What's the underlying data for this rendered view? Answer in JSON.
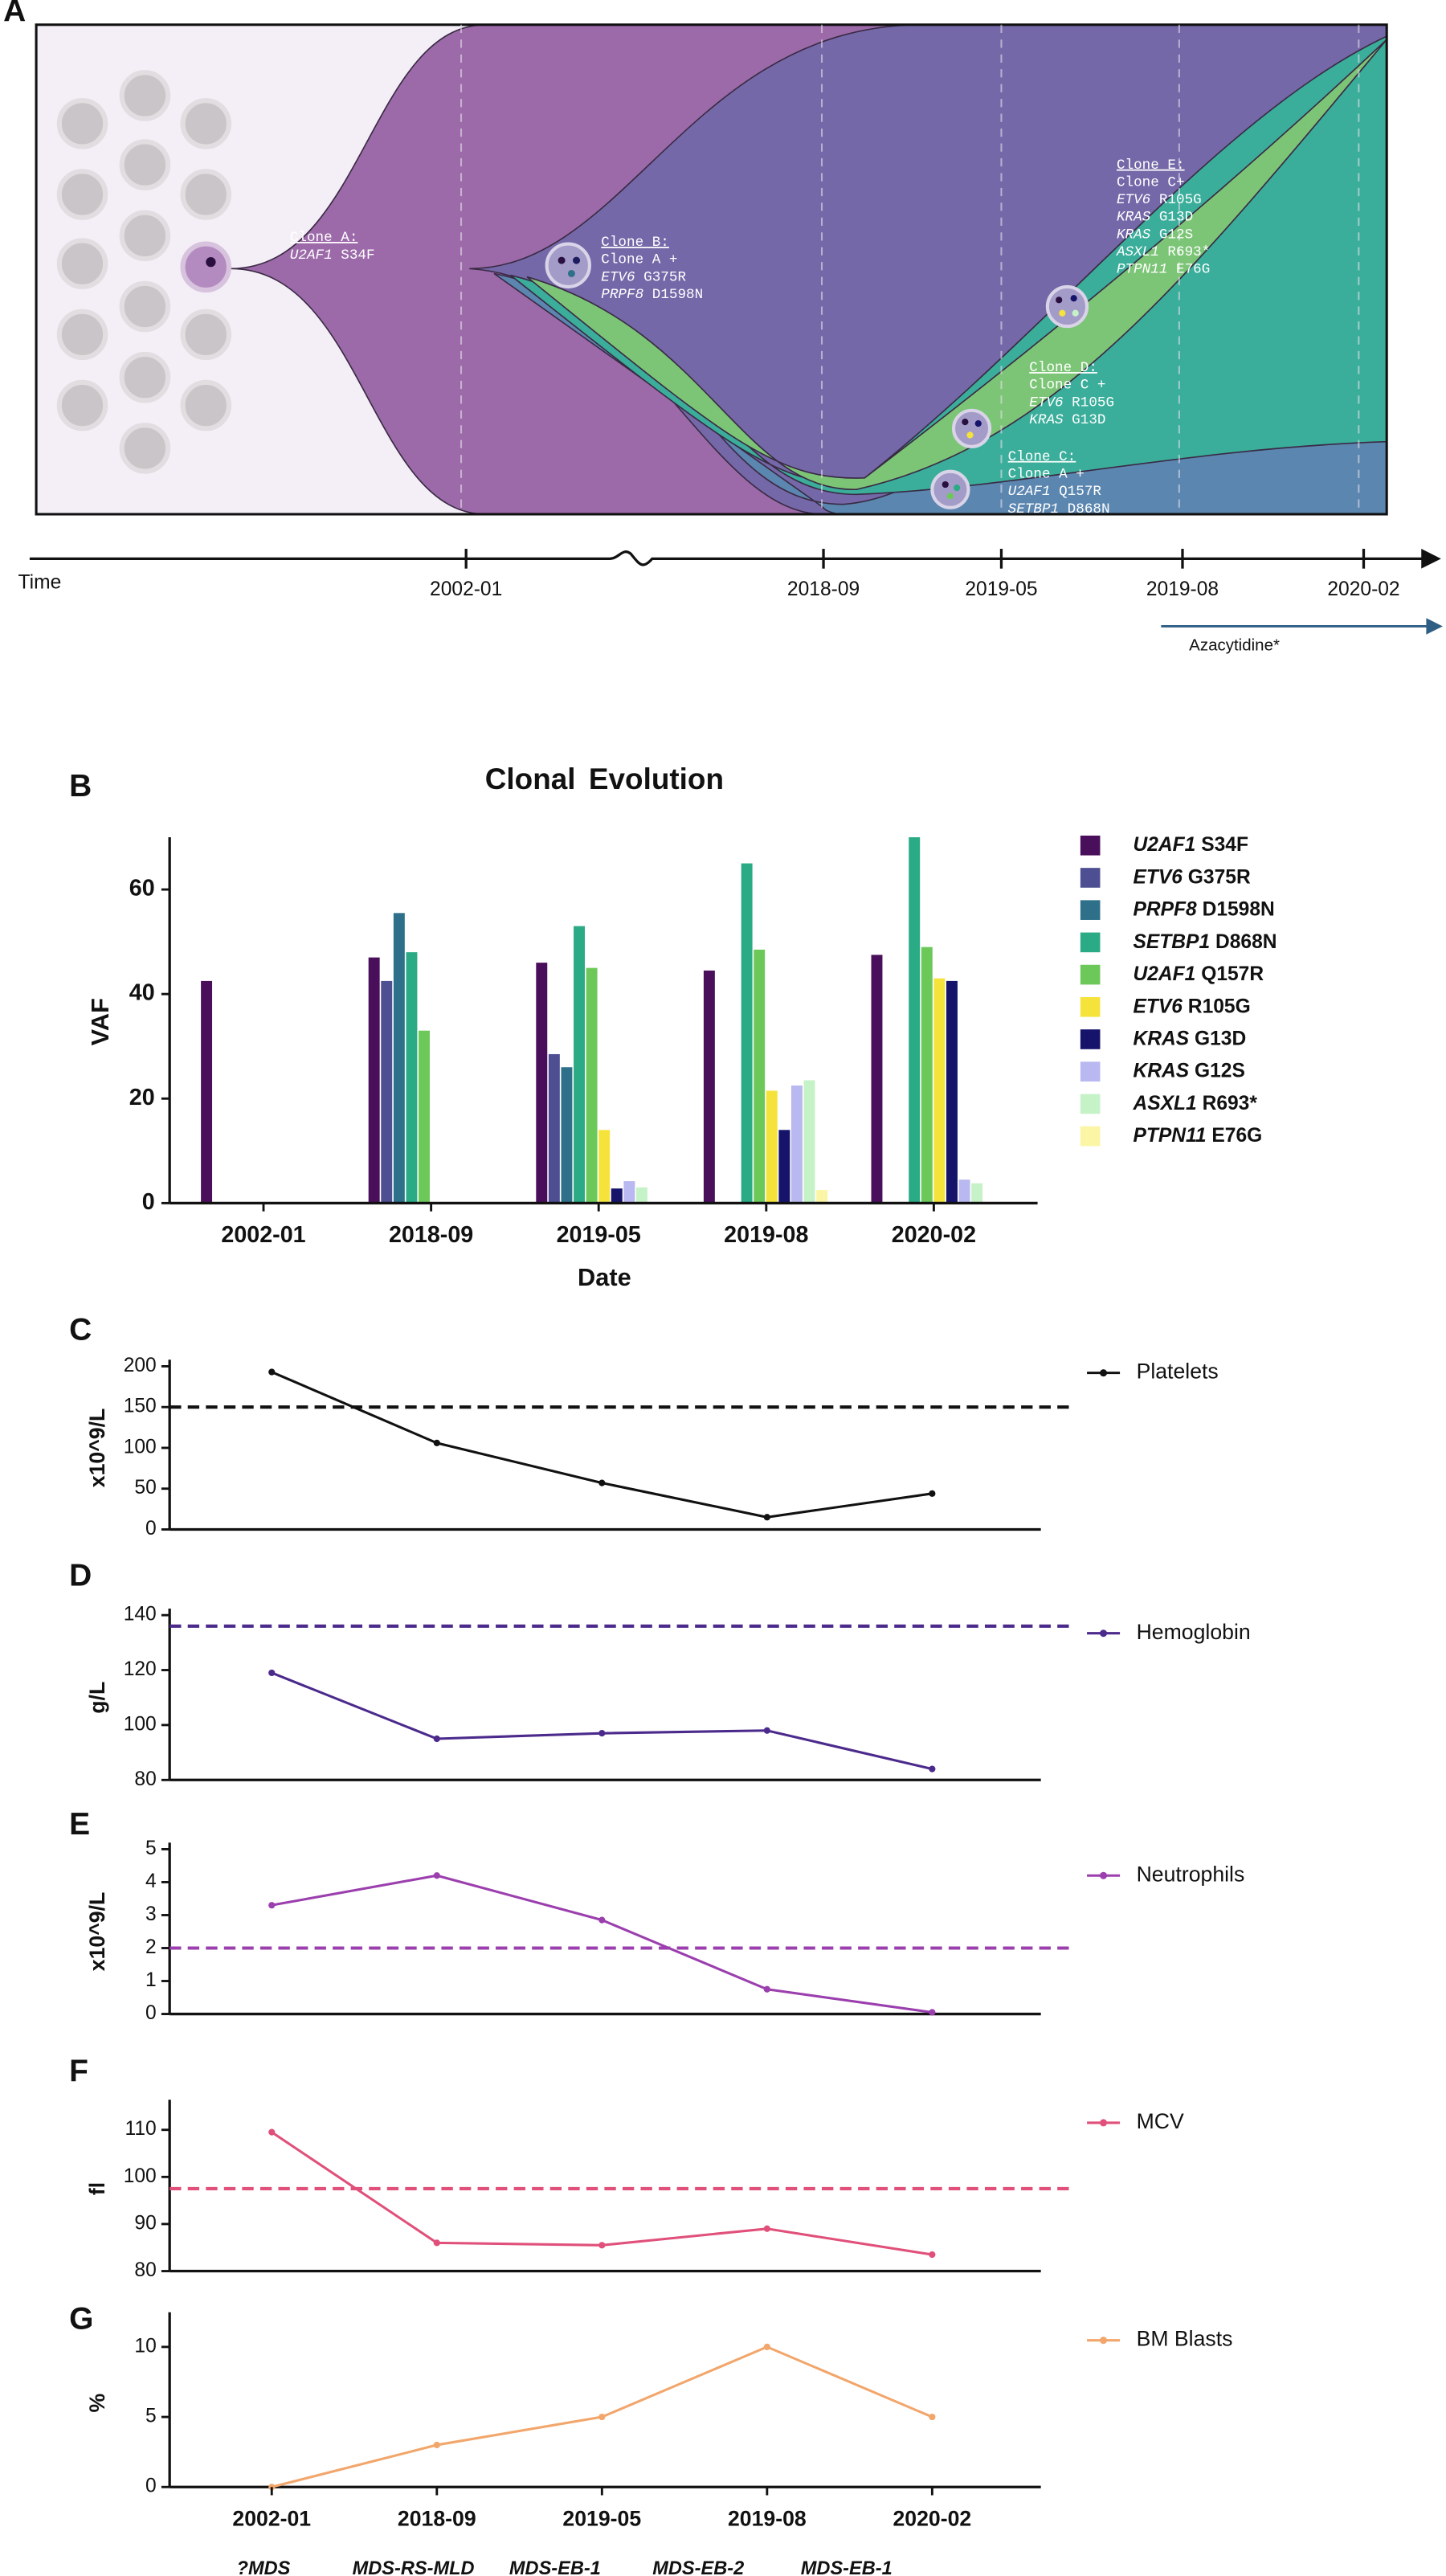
{
  "panel_a": {
    "label": "A",
    "time_label": "Time",
    "time_ticks": [
      "2002-01",
      "2018-09",
      "2019-05",
      "2019-08",
      "2020-02"
    ],
    "treatment": "Azacytidine*",
    "clones": [
      {
        "title": "Clone A:",
        "mutations": [
          "U2AF1 S34F"
        ]
      },
      {
        "title": "Clone B:",
        "parent": "Clone A +",
        "mutations": [
          "ETV6 G375R",
          "PRPF8 D1598N"
        ]
      },
      {
        "title": "Clone C:",
        "parent": "Clone A +",
        "mutations": [
          "U2AF1 Q157R",
          "SETBP1 D868N"
        ]
      },
      {
        "title": "Clone D:",
        "parent": "Clone C +",
        "mutations": [
          "ETV6 R105G",
          "KRAS G13D"
        ]
      },
      {
        "title": "Clone E:",
        "parent": "Clone C+",
        "mutations": [
          "ETV6 R105G",
          "KRAS G13D",
          "KRAS G12S",
          "ASXL1 R693*",
          "PTPN11 E76G"
        ]
      }
    ]
  },
  "chart_data": [
    {
      "type": "bar",
      "panel": "B",
      "title": "Clonal Evolution",
      "xlabel": "Date",
      "ylabel": "VAF",
      "categories": [
        "2002-01",
        "2018-09",
        "2019-05",
        "2019-08",
        "2020-02"
      ],
      "ylim": [
        0,
        70
      ],
      "yticks": [
        0,
        20,
        40,
        60
      ],
      "series": [
        {
          "name": "U2AF1 S34F",
          "color": "#4a0f5a",
          "values": [
            42.5,
            47,
            46,
            44.5,
            47.5
          ]
        },
        {
          "name": "ETV6 G375R",
          "color": "#4e4e92",
          "values": [
            null,
            42.5,
            28.5,
            null,
            null
          ]
        },
        {
          "name": "PRPF8 D1598N",
          "color": "#2e7089",
          "values": [
            null,
            55.5,
            26,
            null,
            null
          ]
        },
        {
          "name": "SETBP1 D868N",
          "color": "#2bab85",
          "values": [
            null,
            48,
            53,
            65,
            70
          ]
        },
        {
          "name": "U2AF1 Q157R",
          "color": "#6dc85a",
          "values": [
            null,
            33,
            45,
            48.5,
            49
          ]
        },
        {
          "name": "ETV6 R105G",
          "color": "#f5e33b",
          "values": [
            null,
            null,
            14,
            21.5,
            43
          ]
        },
        {
          "name": "KRAS G13D",
          "color": "#16136b",
          "values": [
            null,
            null,
            2.8,
            14,
            42.5
          ]
        },
        {
          "name": "KRAS G12S",
          "color": "#b9b8f0",
          "values": [
            null,
            null,
            4.2,
            22.5,
            4.5
          ]
        },
        {
          "name": "ASXL1 R693*",
          "color": "#c6f2c8",
          "values": [
            null,
            null,
            3,
            23.5,
            3.8
          ]
        },
        {
          "name": "PTPN11 E76G",
          "color": "#fbf6a5",
          "values": [
            null,
            null,
            null,
            2.5,
            null
          ]
        }
      ]
    },
    {
      "type": "line",
      "panel": "C",
      "ylabel": "x10^9/L",
      "ylim": [
        0,
        200
      ],
      "yticks": [
        0,
        50,
        100,
        150,
        200
      ],
      "reference": 150,
      "series": [
        {
          "name": "Platelets",
          "color": "#111111",
          "values": [
            193,
            106,
            57,
            15,
            44
          ]
        }
      ]
    },
    {
      "type": "line",
      "panel": "D",
      "ylabel": "g/L",
      "ylim": [
        80,
        140
      ],
      "yticks": [
        80,
        100,
        120,
        140
      ],
      "reference": 136,
      "series": [
        {
          "name": "Hemoglobin",
          "color": "#4b2a8c",
          "values": [
            119,
            95,
            97,
            98,
            84
          ]
        }
      ]
    },
    {
      "type": "line",
      "panel": "E",
      "ylabel": "x10^9/L",
      "ylim": [
        0,
        5
      ],
      "yticks": [
        0,
        1,
        2,
        3,
        4,
        5
      ],
      "reference": 2,
      "series": [
        {
          "name": "Neutrophils",
          "color": "#9b3fae",
          "values": [
            3.3,
            4.2,
            2.85,
            0.75,
            0.05
          ]
        }
      ]
    },
    {
      "type": "line",
      "panel": "F",
      "ylabel": "fl",
      "ylim": [
        80,
        115
      ],
      "yticks": [
        80,
        90,
        100,
        110
      ],
      "reference": 97.5,
      "series": [
        {
          "name": "MCV",
          "color": "#e0507a",
          "values": [
            109.5,
            86,
            85.5,
            89,
            83.5
          ]
        }
      ]
    },
    {
      "type": "line",
      "panel": "G",
      "ylabel": "%",
      "ylim": [
        0,
        12
      ],
      "yticks": [
        0,
        5,
        10
      ],
      "categories": [
        "2002-01",
        "2018-09",
        "2019-05",
        "2019-08",
        "2020-02"
      ],
      "series": [
        {
          "name": "BM Blasts",
          "color": "#f2a66b",
          "values": [
            0,
            3,
            5,
            10,
            5
          ]
        }
      ]
    }
  ],
  "diagnoses": [
    "?MDS",
    "MDS-RS-MLD",
    "MDS-EB-1",
    "MDS-EB-2",
    "MDS-EB-1"
  ]
}
